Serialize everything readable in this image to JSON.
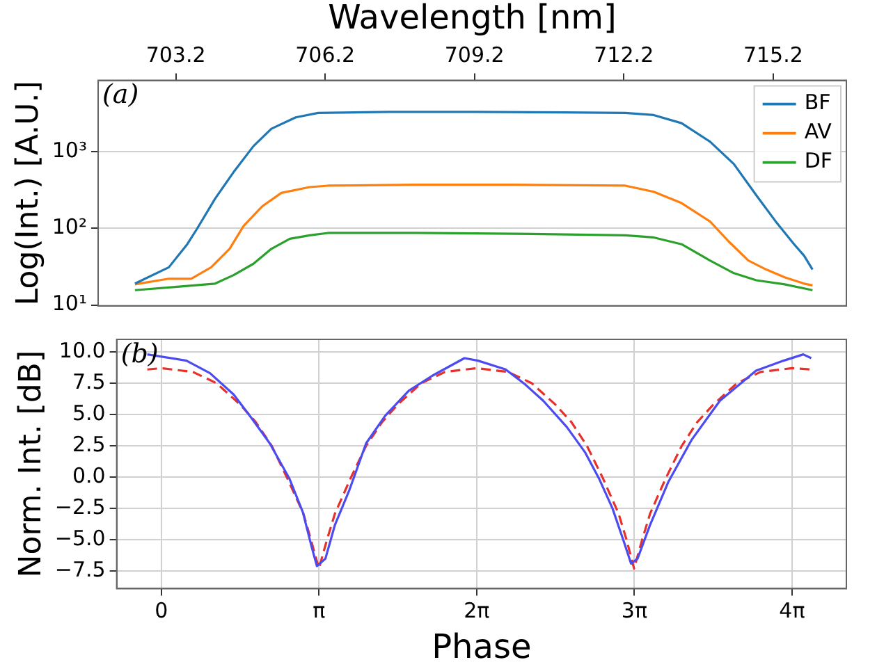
{
  "chart_data": [
    {
      "type": "line",
      "xlabel": "Wavelength [nm]",
      "ylabel": "Log(Int.) [A.U.]",
      "annotations": [
        "(a)"
      ],
      "log": "y",
      "grid": "y",
      "legend": "top right",
      "marker": "none",
      "xlim": [
        701.64,
        716.67
      ],
      "xticks": [
        703.2,
        706.2,
        709.2,
        712.2,
        715.2
      ],
      "ylim": [
        9.7,
        8500
      ],
      "yticks": [
        {
          "value": 10,
          "label": "10¹"
        },
        {
          "value": 100,
          "label": "10²"
        },
        {
          "value": 1000,
          "label": "10³"
        }
      ],
      "series": [
        {
          "name": "BF",
          "color": "#1f77b4",
          "x": [
            702.38,
            703.06,
            703.43,
            703.62,
            703.99,
            704.36,
            704.76,
            705.12,
            705.61,
            706.06,
            707.5,
            709.2,
            711.0,
            712.23,
            712.8,
            713.36,
            713.93,
            714.41,
            714.86,
            715.25,
            715.62,
            715.82,
            715.99
          ],
          "values": [
            19,
            31,
            62,
            97,
            244,
            540,
            1180,
            1990,
            2800,
            3200,
            3300,
            3300,
            3250,
            3200,
            3000,
            2350,
            1350,
            690,
            270,
            123,
            62,
            44,
            29
          ]
        },
        {
          "name": "AV",
          "color": "#ff7f0e",
          "x": [
            702.38,
            703.06,
            703.51,
            703.91,
            704.28,
            704.56,
            704.93,
            705.32,
            705.89,
            706.26,
            708.0,
            710.0,
            712.23,
            712.8,
            713.36,
            713.93,
            714.3,
            714.7,
            715.06,
            715.43,
            715.82,
            715.99
          ],
          "values": [
            18.6,
            22,
            22,
            31,
            54,
            107,
            192,
            290,
            345,
            360,
            370,
            370,
            360,
            300,
            213,
            123,
            68,
            38,
            29,
            23,
            19,
            18
          ]
        },
        {
          "name": "DF",
          "color": "#2ca02c",
          "x": [
            702.38,
            703.23,
            703.99,
            704.36,
            704.76,
            705.12,
            705.49,
            705.89,
            706.26,
            708.0,
            710.0,
            712.23,
            712.8,
            713.36,
            713.93,
            714.41,
            714.86,
            715.43,
            715.99
          ],
          "values": [
            15.6,
            17.3,
            19,
            24.5,
            34.5,
            54,
            73,
            81,
            87,
            87,
            85,
            81,
            76,
            62,
            38,
            26,
            21,
            18.6,
            15.6
          ]
        }
      ]
    },
    {
      "type": "line",
      "xlabel": "Phase",
      "ylabel": "Norm. Int. [dB]",
      "annotations": [
        "(b)"
      ],
      "grid": true,
      "legend": false,
      "marker": "none",
      "xlim": [
        -0.89,
        13.65
      ],
      "xticks": [
        0,
        {
          "value": 3.1416,
          "label": "π"
        },
        {
          "value": 6.2832,
          "label": "2π"
        },
        {
          "value": 9.4248,
          "label": "3π"
        },
        {
          "value": 12.5664,
          "label": "4π"
        }
      ],
      "ylim": [
        -8.9,
        11.0
      ],
      "yticks": [
        {
          "value": -7.5,
          "label": "−7.5"
        },
        {
          "value": -5,
          "label": "−5.0"
        },
        {
          "value": -2.5,
          "label": "−2.5"
        },
        {
          "value": 0,
          "label": "0.0"
        },
        {
          "value": 2.5,
          "label": "2.5"
        },
        {
          "value": 5,
          "label": "5.0"
        },
        {
          "value": 7.5,
          "label": "7.5"
        },
        {
          "value": 10,
          "label": "10.0"
        }
      ],
      "series": [
        {
          "color": "#4b4bf0",
          "line_style": "solid",
          "x": [
            -0.28,
            0.5,
            0.97,
            1.44,
            1.8,
            2.16,
            2.55,
            2.82,
            2.99,
            3.1,
            3.27,
            3.46,
            3.74,
            4.08,
            4.46,
            4.93,
            5.4,
            6.04,
            6.31,
            6.86,
            7.25,
            7.61,
            8.08,
            8.44,
            8.72,
            8.99,
            9.22,
            9.36,
            9.49,
            9.74,
            10.1,
            10.57,
            11.13,
            11.85,
            12.4,
            12.79,
            12.95
          ],
          "values": [
            9.8,
            9.3,
            8.3,
            6.6,
            4.7,
            2.7,
            -0.1,
            -2.8,
            -5.5,
            -7.1,
            -6.5,
            -3.8,
            -1.1,
            2.7,
            4.9,
            6.9,
            8.1,
            9.5,
            9.3,
            8.6,
            7.4,
            6.1,
            4.0,
            2.0,
            -0.1,
            -2.5,
            -5.2,
            -6.9,
            -6.5,
            -3.8,
            -0.4,
            3.0,
            6.1,
            8.5,
            9.3,
            9.8,
            9.5
          ]
        },
        {
          "color": "#e8302a",
          "line_style": "dashed",
          "x": [
            -0.28,
            0,
            0.63,
            1.1,
            1.57,
            1.88,
            2.2,
            2.51,
            2.83,
            2.98,
            3.14,
            3.3,
            3.46,
            3.77,
            4.08,
            4.4,
            4.71,
            5.18,
            5.65,
            6.28,
            6.91,
            7.38,
            7.85,
            8.17,
            8.48,
            8.8,
            9.11,
            9.27,
            9.42,
            9.58,
            9.74,
            10.05,
            10.37,
            10.68,
            11.0,
            11.47,
            11.94,
            12.57,
            12.94
          ],
          "values": [
            8.6,
            8.7,
            8.4,
            7.5,
            5.8,
            4.4,
            2.5,
            -0.1,
            -2.9,
            -5.0,
            -7.3,
            -5.0,
            -2.9,
            -0.1,
            2.5,
            4.4,
            5.8,
            7.5,
            8.4,
            8.7,
            8.4,
            7.5,
            5.8,
            4.4,
            2.5,
            -0.1,
            -2.9,
            -5.0,
            -7.3,
            -5.0,
            -2.9,
            -0.1,
            2.5,
            4.4,
            5.8,
            7.5,
            8.4,
            8.7,
            8.6
          ]
        }
      ]
    }
  ]
}
